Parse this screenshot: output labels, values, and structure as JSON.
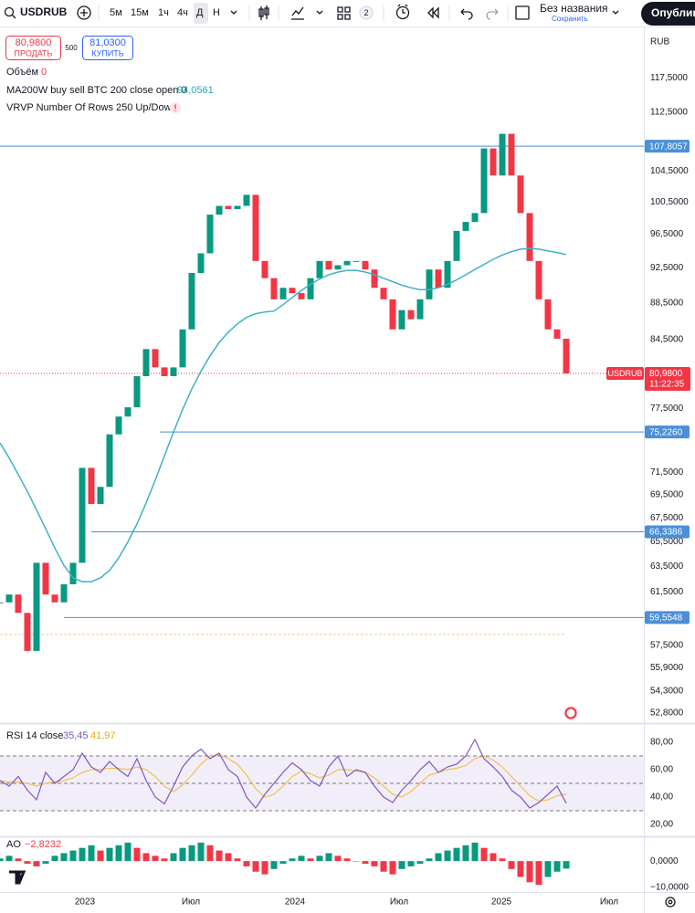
{
  "toolbar": {
    "intervals": [
      "5м",
      "15м",
      "1ч",
      "4ч",
      "Д",
      "Н"
    ],
    "layouts_badge": 2,
    "layout_name": "Без названия",
    "layout_status": "Сохранить",
    "publish": "Опублико"
  },
  "chart_data": [
    {
      "type": "candlestick",
      "symbol": "USDRUB",
      "currency": "RUB",
      "values": [
        60.7,
        61.3,
        59.9,
        57.1,
        63.8,
        61.3,
        60.7,
        62.1,
        63.8,
        71.9,
        68.7,
        70.2,
        75.0,
        76.7,
        77.6,
        80.7,
        83.5,
        81.6,
        80.7,
        81.6,
        85.6,
        91.9,
        94.2,
        98.9,
        100.0,
        99.6,
        100.0,
        101.4,
        93.3,
        91.3,
        88.9,
        90.2,
        89.6,
        88.9,
        91.3,
        93.3,
        92.3,
        92.8,
        93.3,
        93.3,
        92.3,
        90.2,
        88.9,
        85.6,
        87.7,
        86.7,
        88.9,
        92.3,
        90.2,
        93.3,
        96.9,
        98.0,
        99.1,
        107.5,
        103.9,
        109.5,
        103.9,
        99.1,
        93.3,
        88.9,
        85.6,
        84.6,
        80.98
      ],
      "up_color": "#089981",
      "down_color": "#f23645",
      "xlim": [
        0,
        70.5
      ],
      "xticks": [
        {
          "value": 9.3,
          "label": "2023"
        },
        {
          "value": 20.9,
          "label": "Июл"
        },
        {
          "value": 32.3,
          "label": "2024"
        },
        {
          "value": 43.7,
          "label": "Июл"
        },
        {
          "value": 54.9,
          "label": "2025"
        },
        {
          "value": 66.7,
          "label": "Июл"
        }
      ],
      "ylim": [
        52.26,
        125.2
      ],
      "log_scale": true,
      "yticks": [
        {
          "value": 117.5,
          "label": "117,5000"
        },
        {
          "value": 112.5,
          "label": "112,5000"
        },
        {
          "value": 104.5,
          "label": "104,5000"
        },
        {
          "value": 100.5,
          "label": "100,5000"
        },
        {
          "value": 96.5,
          "label": "96,5000"
        },
        {
          "value": 92.5,
          "label": "92,5000"
        },
        {
          "value": 88.5,
          "label": "88,5000"
        },
        {
          "value": 84.5,
          "label": "84,5000"
        },
        {
          "value": 77.5,
          "label": "77,5000"
        },
        {
          "value": 71.5,
          "label": "71,5000"
        },
        {
          "value": 69.5,
          "label": "69,5000"
        },
        {
          "value": 67.5,
          "label": "67,5000"
        },
        {
          "value": 65.5,
          "label": "65,5000"
        },
        {
          "value": 63.5,
          "label": "63,5000"
        },
        {
          "value": 61.5,
          "label": "61,5000"
        },
        {
          "value": 57.5,
          "label": "57,5000"
        },
        {
          "value": 55.9,
          "label": "55,9000"
        },
        {
          "value": 54.3,
          "label": "54,3000"
        },
        {
          "value": 52.8,
          "label": "52,8000"
        }
      ],
      "series": [
        {
          "name": "MA200W buy sell BTC 200 close open 0",
          "color": "#3bb3c3",
          "value_label": "94,0561",
          "values": [
            74.2,
            72.8,
            71.3,
            69.8,
            68.2,
            66.6,
            65.0,
            63.6,
            62.6,
            62.3,
            62.3,
            62.6,
            63.2,
            64.2,
            65.5,
            67.0,
            68.8,
            70.8,
            73.0,
            75.2,
            77.4,
            79.4,
            81.2,
            82.8,
            84.2,
            85.3,
            86.2,
            86.9,
            87.3,
            87.5,
            87.6,
            88.3,
            89.1,
            89.9,
            90.6,
            91.2,
            91.7,
            92.0,
            92.2,
            92.2,
            92.0,
            91.7,
            91.3,
            90.9,
            90.5,
            90.2,
            90.0,
            90.0,
            90.2,
            90.6,
            91.1,
            91.7,
            92.3,
            92.9,
            93.5,
            94.0,
            94.4,
            94.7,
            94.8,
            94.7,
            94.5,
            94.3,
            94.0561
          ]
        }
      ],
      "levels": [
        {
          "value": 107.8057,
          "label": "107,8057",
          "x": 0
        },
        {
          "value": 75.226,
          "label": "75,2260",
          "x": 17.5
        },
        {
          "value": 66.3386,
          "label": "66,3386",
          "x": 10
        },
        {
          "value": 59.5548,
          "label": "59,5548",
          "x": 7
        }
      ],
      "level_color": "#4a8fd8",
      "last_price": {
        "value": 80.98,
        "label": "80,9800",
        "countdown": "11:22:35"
      },
      "volume": {
        "name": "Объём",
        "value": 0
      },
      "vrvp": {
        "name": "VRVP Number Of Rows 250 Up/Down",
        "poc": 58.3,
        "poc_color": "#f0c89a"
      },
      "trade": {
        "sell_price": "80,9800",
        "sell": "ПРОДАТЬ",
        "quantity": 500,
        "buy_price": "81,0300",
        "buy": "КУПИТЬ"
      }
    },
    {
      "type": "line",
      "title": "RSI 14 close",
      "ylim": [
        10,
        90
      ],
      "yticks": [
        {
          "value": 80,
          "label": "80,00"
        },
        {
          "value": 60,
          "label": "60,00"
        },
        {
          "value": 40,
          "label": "40,00"
        },
        {
          "value": 20,
          "label": "20,00"
        }
      ],
      "band": [
        30,
        70
      ],
      "band_lines": [
        70,
        50,
        30
      ],
      "band_color": "#7e57c2",
      "series": [
        {
          "color": "#7e57c2",
          "value_label": "35,45",
          "values": [
            52,
            48,
            55,
            45,
            38,
            58,
            50,
            55,
            60,
            72,
            62,
            58,
            66,
            60,
            55,
            68,
            52,
            40,
            35,
            48,
            62,
            70,
            75,
            68,
            72,
            60,
            55,
            40,
            32,
            42,
            50,
            58,
            65,
            60,
            52,
            48,
            62,
            70,
            55,
            60,
            58,
            48,
            40,
            36,
            45,
            52,
            60,
            66,
            58,
            62,
            64,
            70,
            82,
            68,
            62,
            55,
            45,
            40,
            32,
            36,
            42,
            48,
            35.45
          ]
        },
        {
          "color": "#f2c14e",
          "value_label": "41,97",
          "values": [
            52,
            51,
            51,
            50,
            48,
            50,
            51,
            52,
            54,
            58,
            60,
            60,
            61,
            61,
            60,
            62,
            60,
            55,
            48,
            44,
            49,
            56,
            64,
            70,
            71,
            68,
            64,
            56,
            46,
            40,
            42,
            48,
            55,
            59,
            57,
            54,
            56,
            60,
            60,
            59,
            58,
            54,
            48,
            42,
            40,
            44,
            50,
            56,
            58,
            60,
            61,
            63,
            68,
            70,
            67,
            62,
            55,
            48,
            41,
            37,
            38,
            41,
            41.97
          ]
        }
      ]
    },
    {
      "type": "bar",
      "title": "AO",
      "value_label": "−2,8232",
      "values": [
        1,
        2,
        1,
        -1,
        -2,
        -1,
        2,
        3,
        4,
        5,
        6,
        4,
        5,
        6,
        7,
        5,
        3,
        2,
        1,
        3,
        5,
        6,
        7,
        6,
        4,
        3,
        1,
        -2,
        -4,
        -5,
        -3,
        -1,
        1,
        2,
        1,
        2,
        3,
        2,
        1,
        0,
        -1,
        -2,
        -4,
        -5,
        -3,
        -2,
        -1,
        1,
        3,
        4,
        5,
        6,
        7,
        5,
        3,
        1,
        -3,
        -6,
        -8,
        -9,
        -6,
        -4,
        -2.8232
      ],
      "rising_color": "#089981",
      "falling_color": "#f23645",
      "ylim": [
        -11,
        8
      ],
      "yticks": [
        {
          "value": 0,
          "label": "0,0000"
        },
        {
          "value": -10,
          "label": "−10,0000"
        }
      ]
    }
  ]
}
